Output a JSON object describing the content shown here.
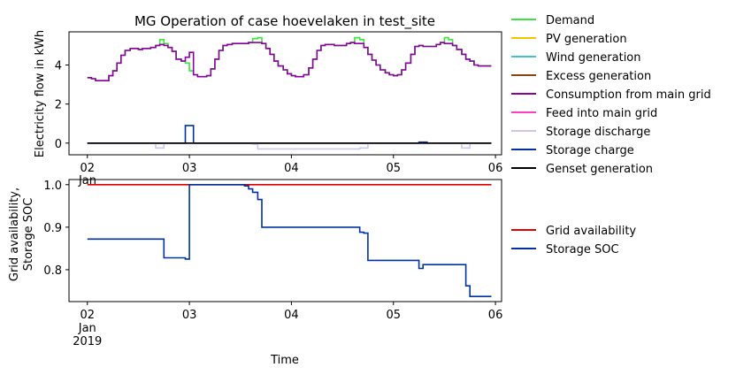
{
  "chart_data": [
    {
      "type": "line",
      "title": "MG Operation of case hoevelaken in test_site",
      "ylabel": "Electricity flow in kWh",
      "xlabel": "",
      "x_tick_labels": [
        "02",
        "03",
        "04",
        "05",
        "06"
      ],
      "x_tick_values": [
        2,
        3,
        4,
        5,
        6
      ],
      "x_tick_extra": "Jan",
      "xlim": [
        1.82,
        6.06
      ],
      "ylim": [
        -0.6,
        5.7
      ],
      "y_ticks": [
        0,
        2,
        4
      ],
      "grid": false,
      "legend_position": "outside-right",
      "series": [
        {
          "name": "Demand",
          "color": "#39e639",
          "x": [
            2.0,
            2.04,
            2.08,
            2.12,
            2.17,
            2.21,
            2.25,
            2.29,
            2.33,
            2.37,
            2.42,
            2.46,
            2.5,
            2.54,
            2.58,
            2.62,
            2.67,
            2.71,
            2.75,
            2.79,
            2.83,
            2.87,
            2.92,
            2.96,
            3.0,
            3.04,
            3.08,
            3.12,
            3.17,
            3.21,
            3.25,
            3.29,
            3.33,
            3.37,
            3.42,
            3.46,
            3.5,
            3.54,
            3.58,
            3.62,
            3.67,
            3.71,
            3.75,
            3.79,
            3.83,
            3.87,
            3.92,
            3.96,
            4.0,
            4.04,
            4.08,
            4.12,
            4.17,
            4.21,
            4.25,
            4.29,
            4.33,
            4.37,
            4.42,
            4.46,
            4.5,
            4.54,
            4.58,
            4.62,
            4.67,
            4.71,
            4.75,
            4.79,
            4.83,
            4.87,
            4.92,
            4.96,
            5.0,
            5.04,
            5.08,
            5.12,
            5.17,
            5.21,
            5.25,
            5.29,
            5.33,
            5.37,
            5.42,
            5.46,
            5.5,
            5.54,
            5.58,
            5.62,
            5.67,
            5.71,
            5.75,
            5.79,
            5.83,
            5.87,
            5.92,
            5.96
          ],
          "values": [
            3.35,
            3.3,
            3.2,
            3.2,
            3.2,
            3.45,
            3.7,
            4.1,
            4.5,
            4.75,
            4.85,
            4.85,
            4.8,
            4.85,
            4.85,
            4.9,
            5.0,
            5.3,
            5.1,
            4.9,
            4.7,
            4.3,
            4.2,
            4.1,
            3.7,
            3.5,
            3.4,
            3.4,
            3.45,
            3.8,
            4.3,
            4.75,
            5.0,
            5.05,
            5.1,
            5.1,
            5.1,
            5.1,
            5.15,
            5.35,
            5.4,
            5.1,
            4.85,
            4.55,
            4.2,
            3.95,
            3.75,
            3.55,
            3.45,
            3.4,
            3.4,
            3.5,
            3.85,
            4.3,
            4.75,
            5.0,
            5.05,
            5.05,
            5.0,
            5.0,
            5.0,
            5.1,
            5.15,
            5.4,
            5.3,
            4.9,
            4.55,
            4.25,
            4.0,
            3.75,
            3.6,
            3.5,
            3.45,
            3.5,
            3.75,
            4.1,
            4.55,
            4.95,
            5.0,
            4.95,
            4.95,
            4.95,
            5.05,
            5.15,
            5.4,
            5.3,
            5.0,
            4.8,
            4.55,
            4.3,
            4.2,
            4.0,
            3.95,
            3.95,
            3.95,
            3.95
          ]
        },
        {
          "name": "PV generation",
          "color": "#ffc000",
          "x": [
            2.0,
            5.96
          ],
          "values": [
            0,
            0
          ]
        },
        {
          "name": "Wind generation",
          "color": "#40c0e0",
          "x": [
            2.0,
            5.96
          ],
          "values": [
            0,
            0
          ]
        },
        {
          "name": "Excess generation",
          "color": "#8b4513",
          "x": [
            2.0,
            5.96
          ],
          "values": [
            0,
            0
          ]
        },
        {
          "name": "Consumption from main grid",
          "color": "#8c00a0",
          "x": [
            2.0,
            2.04,
            2.08,
            2.12,
            2.17,
            2.21,
            2.25,
            2.29,
            2.33,
            2.37,
            2.42,
            2.46,
            2.5,
            2.54,
            2.58,
            2.62,
            2.67,
            2.71,
            2.75,
            2.79,
            2.83,
            2.87,
            2.92,
            2.96,
            3.0,
            3.04,
            3.08,
            3.12,
            3.17,
            3.21,
            3.25,
            3.29,
            3.33,
            3.37,
            3.42,
            3.46,
            3.5,
            3.54,
            3.58,
            3.62,
            3.67,
            3.71,
            3.75,
            3.79,
            3.83,
            3.87,
            3.92,
            3.96,
            4.0,
            4.04,
            4.08,
            4.12,
            4.17,
            4.21,
            4.25,
            4.29,
            4.33,
            4.37,
            4.42,
            4.46,
            4.5,
            4.54,
            4.58,
            4.62,
            4.67,
            4.71,
            4.75,
            4.79,
            4.83,
            4.87,
            4.92,
            4.96,
            5.0,
            5.04,
            5.08,
            5.12,
            5.17,
            5.21,
            5.25,
            5.29,
            5.33,
            5.37,
            5.42,
            5.46,
            5.5,
            5.54,
            5.58,
            5.62,
            5.67,
            5.71,
            5.75,
            5.79,
            5.83,
            5.87,
            5.92,
            5.96
          ],
          "values": [
            3.35,
            3.3,
            3.2,
            3.2,
            3.2,
            3.45,
            3.7,
            4.1,
            4.5,
            4.75,
            4.85,
            4.85,
            4.8,
            4.85,
            4.85,
            4.9,
            5.0,
            5.05,
            5.0,
            4.9,
            4.7,
            4.3,
            4.2,
            4.4,
            4.65,
            3.5,
            3.4,
            3.4,
            3.45,
            3.8,
            4.3,
            4.75,
            5.0,
            5.05,
            5.1,
            5.1,
            5.1,
            5.1,
            5.15,
            5.15,
            5.15,
            5.1,
            4.85,
            4.55,
            4.2,
            3.95,
            3.75,
            3.55,
            3.45,
            3.4,
            3.4,
            3.5,
            3.85,
            4.3,
            4.75,
            5.0,
            5.05,
            5.05,
            5.0,
            5.0,
            5.0,
            5.1,
            5.15,
            5.1,
            5.1,
            4.9,
            4.55,
            4.25,
            4.0,
            3.75,
            3.6,
            3.5,
            3.45,
            3.5,
            3.75,
            4.1,
            4.55,
            4.95,
            5.0,
            4.95,
            4.95,
            4.95,
            5.05,
            5.15,
            5.1,
            5.1,
            5.0,
            4.8,
            4.55,
            4.3,
            4.2,
            4.0,
            3.95,
            3.95,
            3.95,
            3.95
          ]
        },
        {
          "name": "Feed into main grid",
          "color": "#ff3ec8",
          "x": [
            2.0,
            5.96
          ],
          "values": [
            0,
            0
          ]
        },
        {
          "name": "Storage discharge",
          "color": "#c8c8f0",
          "x": [
            2.0,
            2.67,
            2.71,
            2.75,
            3.62,
            3.67,
            3.71,
            4.67,
            4.71,
            4.75,
            5.67,
            5.71,
            5.75,
            5.96
          ],
          "values": [
            0,
            -0.25,
            -0.25,
            0,
            -0.05,
            -0.3,
            -0.3,
            -0.25,
            -0.25,
            0,
            -0.25,
            -0.25,
            0,
            0
          ]
        },
        {
          "name": "Storage charge",
          "color": "#0033a0",
          "x": [
            2.0,
            2.96,
            3.0,
            3.04,
            5.25,
            5.29,
            5.33,
            5.96
          ],
          "values": [
            0,
            0.9,
            0.9,
            0,
            0.05,
            0.05,
            0,
            0
          ]
        },
        {
          "name": "Genset generation",
          "color": "#000000",
          "x": [
            2.0,
            5.96
          ],
          "values": [
            0,
            0
          ]
        }
      ]
    },
    {
      "type": "line",
      "title": "",
      "ylabel": "Grid availability,\nStorage SOC",
      "xlabel": "Time",
      "x_tick_labels": [
        "02\nJan\n2019",
        "03",
        "04",
        "05",
        "06"
      ],
      "x_tick_values": [
        2,
        3,
        4,
        5,
        6
      ],
      "xlim": [
        1.82,
        6.06
      ],
      "ylim": [
        0.725,
        1.012
      ],
      "y_ticks": [
        0.8,
        0.9,
        1.0
      ],
      "grid": false,
      "legend_position": "outside-right",
      "series": [
        {
          "name": "Grid availability",
          "color": "#e00000",
          "x": [
            2.0,
            5.96
          ],
          "values": [
            1.0,
            1.0
          ]
        },
        {
          "name": "Storage SOC",
          "color": "#0033a0",
          "x": [
            2.0,
            2.71,
            2.75,
            2.96,
            3.0,
            3.5,
            3.54,
            3.58,
            3.62,
            3.67,
            3.71,
            4.67,
            4.71,
            4.75,
            5.25,
            5.29,
            5.67,
            5.71,
            5.75,
            5.96
          ],
          "values": [
            0.872,
            0.872,
            0.828,
            0.825,
            1.0,
            1.0,
            0.997,
            0.99,
            0.982,
            0.965,
            0.9,
            0.888,
            0.886,
            0.822,
            0.803,
            0.812,
            0.812,
            0.762,
            0.737,
            0.737
          ]
        }
      ]
    }
  ]
}
